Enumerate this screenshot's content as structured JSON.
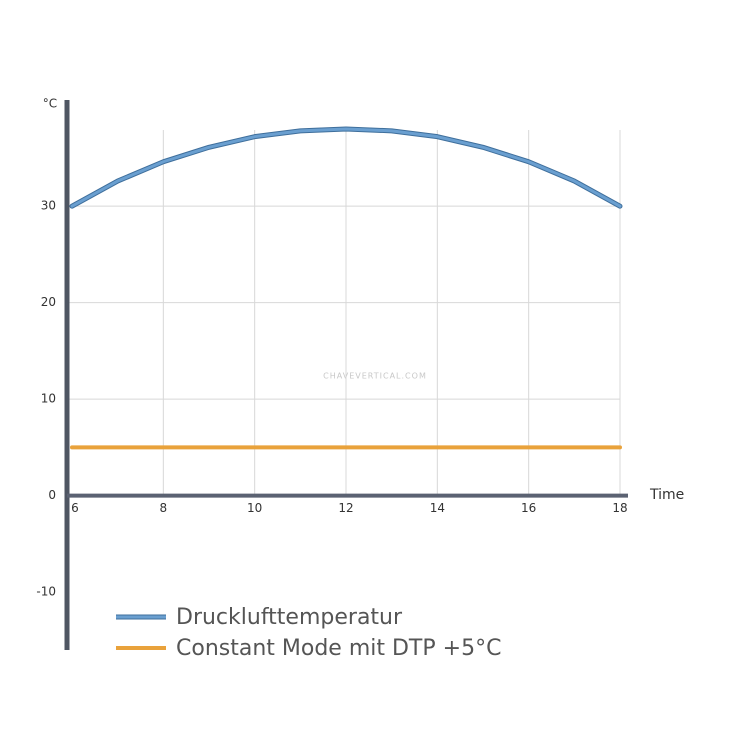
{
  "chart_data": {
    "type": "line",
    "y_label": "°C",
    "x_label": "Time",
    "watermark": "CHAVEVERTICAL.COM",
    "x": [
      6,
      7,
      8,
      9,
      10,
      11,
      12,
      13,
      14,
      15,
      16,
      17,
      18
    ],
    "series": [
      {
        "name": "Drucklufttemperatur",
        "color": "#6a9fd0",
        "values": [
          30,
          32.6,
          34.6,
          36.1,
          37.2,
          37.8,
          38,
          37.8,
          37.2,
          36.1,
          34.6,
          32.6,
          30
        ]
      },
      {
        "name": "Constant Mode mit DTP +5°C",
        "color": "#e9a23b",
        "values": [
          5,
          5,
          5,
          5,
          5,
          5,
          5,
          5,
          5,
          5,
          5,
          5,
          5
        ]
      }
    ],
    "xlim": [
      6,
      18
    ],
    "ylim": [
      -16,
      41
    ],
    "xticks": [
      6,
      8,
      10,
      12,
      14,
      16,
      18
    ],
    "yticks": [
      -10,
      0,
      10,
      20,
      30
    ],
    "grid": true
  }
}
